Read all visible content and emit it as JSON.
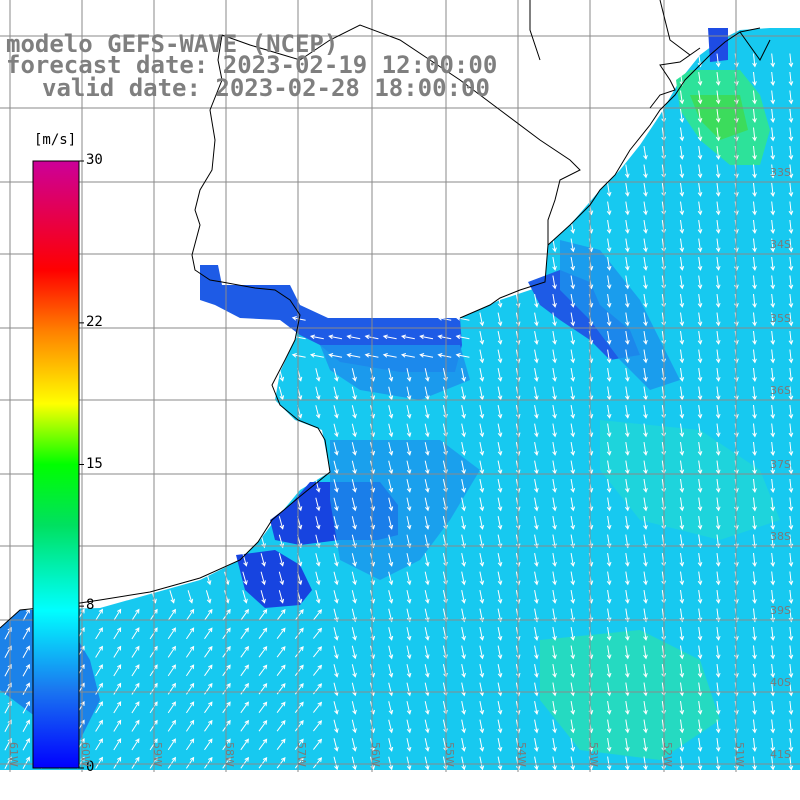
{
  "title": {
    "line1": "modelo GEFS-WAVE (NCEP)",
    "line2": "forecast date: 2023-02-19 12:00:00",
    "line3": "valid date: 2023-02-28 18:00:00"
  },
  "colorbar": {
    "units": "[m/s]",
    "ticks": [
      {
        "value": 30,
        "label": "30"
      },
      {
        "value": 22,
        "label": "22"
      },
      {
        "value": 15,
        "label": "15"
      },
      {
        "value": 8,
        "label": "8"
      },
      {
        "value": 0,
        "label": "0"
      }
    ]
  },
  "axes": {
    "lat_labels": [
      "33S",
      "34S",
      "35S",
      "36S",
      "37S",
      "38S",
      "39S",
      "40S",
      "41S"
    ],
    "lon_labels": [
      "61W",
      "60W",
      "59W",
      "58W",
      "57W",
      "56W",
      "55W",
      "54W",
      "53W",
      "52W",
      "51W"
    ]
  },
  "colors": {
    "ocean_base": "#17c9f0",
    "land": "#ffffff",
    "grid": "#888888",
    "coast": "#000000",
    "arrows": "#ffffff"
  },
  "map_layers": [
    "wind-speed-shading",
    "wind-direction-arrows",
    "coastline",
    "lat-lon-grid"
  ]
}
